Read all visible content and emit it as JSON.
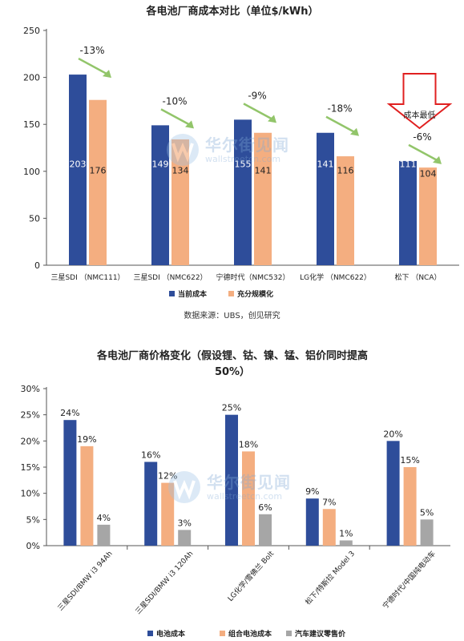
{
  "chart_data": [
    {
      "type": "bar",
      "title": "各电池厂商成本对比（单位$/kWh）",
      "categories": [
        "三星SDI （NMC111）",
        "三星SDI （NMC622）",
        "宁德时代（NMC532）",
        "LG化学 （NMC622）",
        "松下 （NCA）"
      ],
      "series": [
        {
          "name": "当前成本",
          "color": "#2E4D9A",
          "values": [
            203,
            149,
            155,
            141,
            111
          ]
        },
        {
          "name": "充分规模化",
          "color": "#F4AE80",
          "values": [
            176,
            134,
            141,
            116,
            104
          ]
        }
      ],
      "annotations": [
        "-13%",
        "-10%",
        "-9%",
        "-18%",
        "-6%"
      ],
      "callout": "成本最低",
      "ylim": [
        0,
        250
      ],
      "yticks": [
        "0",
        "50",
        "100",
        "150",
        "200",
        "250"
      ],
      "legend": "bottom",
      "grid": false
    },
    {
      "type": "bar",
      "title": "各电池厂商价格变化（假设锂、钴、镍、锰、铝价同时提高50%）",
      "title_lines": [
        "各电池厂商价格变化（假设锂、钴、镍、锰、铝价同时提高",
        "50%）"
      ],
      "categories": [
        "三星SDI/BMW i3 94Ah",
        "三星SDI/BMW i3 120Ah",
        "LG化学/雪佛兰 Bolt",
        "松下/特斯拉 Model 3",
        "宁德时代/中国纯电动车"
      ],
      "series": [
        {
          "name": "电池成本",
          "color": "#2E4D9A",
          "values": [
            24,
            16,
            25,
            9,
            20
          ]
        },
        {
          "name": "组合电池成本",
          "color": "#F4AE80",
          "values": [
            19,
            12,
            18,
            7,
            15
          ]
        },
        {
          "name": "汽车建议零售价",
          "color": "#A6A6A6",
          "values": [
            4,
            3,
            6,
            1,
            5
          ]
        }
      ],
      "value_labels": [
        [
          "24%",
          "16%",
          "25%",
          "9%",
          "20%"
        ],
        [
          "19%",
          "12%",
          "18%",
          "7%",
          "15%"
        ],
        [
          "4%",
          "3%",
          "6%",
          "1%",
          "5%"
        ]
      ],
      "ylim": [
        0,
        30
      ],
      "yticks": [
        "0%",
        "5%",
        "10%",
        "15%",
        "20%",
        "25%",
        "30%"
      ],
      "legend": "bottom",
      "grid": false
    }
  ],
  "source": "数据来源：UBS，创见研究",
  "watermark": {
    "brand": "华尔街见闻",
    "domain": "wallstreetcn.com"
  }
}
